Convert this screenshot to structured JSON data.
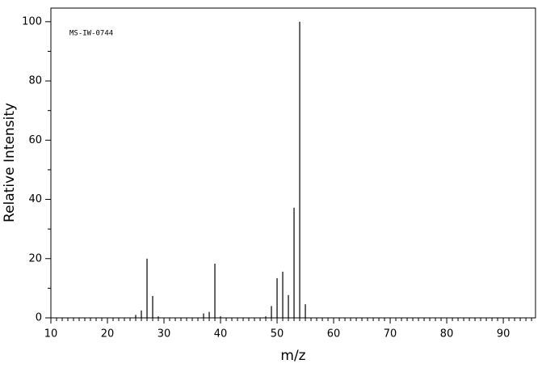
{
  "chart_data": {
    "type": "stem",
    "annotation": "MS-IW-0744",
    "xlabel": "m/z",
    "ylabel": "Relative Intensity",
    "x": [
      25,
      26,
      27,
      28,
      29,
      37,
      38,
      39,
      40,
      48,
      49,
      50,
      51,
      52,
      53,
      54,
      55
    ],
    "values": [
      1,
      2.5,
      20,
      7.4,
      0.5,
      1.5,
      2,
      18.3,
      0.5,
      0.5,
      4,
      13.4,
      15.6,
      7.7,
      37.2,
      100,
      4.6
    ],
    "color": "#000000",
    "xlim": [
      10,
      95.7
    ],
    "ylim": [
      0,
      104.6
    ],
    "xticks": [
      10,
      20,
      30,
      40,
      50,
      60,
      70,
      80,
      90
    ],
    "xminorticks": [
      11,
      12,
      13,
      14,
      15,
      16,
      17,
      18,
      19,
      21,
      22,
      23,
      24,
      25,
      26,
      27,
      28,
      29,
      31,
      32,
      33,
      34,
      35,
      36,
      37,
      38,
      39,
      41,
      42,
      43,
      44,
      45,
      46,
      47,
      48,
      49,
      51,
      52,
      53,
      54,
      55,
      56,
      57,
      58,
      59,
      61,
      62,
      63,
      64,
      65,
      66,
      67,
      68,
      69,
      71,
      72,
      73,
      74,
      75,
      76,
      77,
      78,
      79,
      81,
      82,
      83,
      84,
      85,
      86,
      87,
      88,
      89,
      91,
      92,
      93,
      94,
      95
    ],
    "yticks": [
      0,
      20,
      40,
      60,
      80,
      100
    ],
    "yminorticks": [
      10,
      30,
      50,
      70,
      90
    ]
  }
}
